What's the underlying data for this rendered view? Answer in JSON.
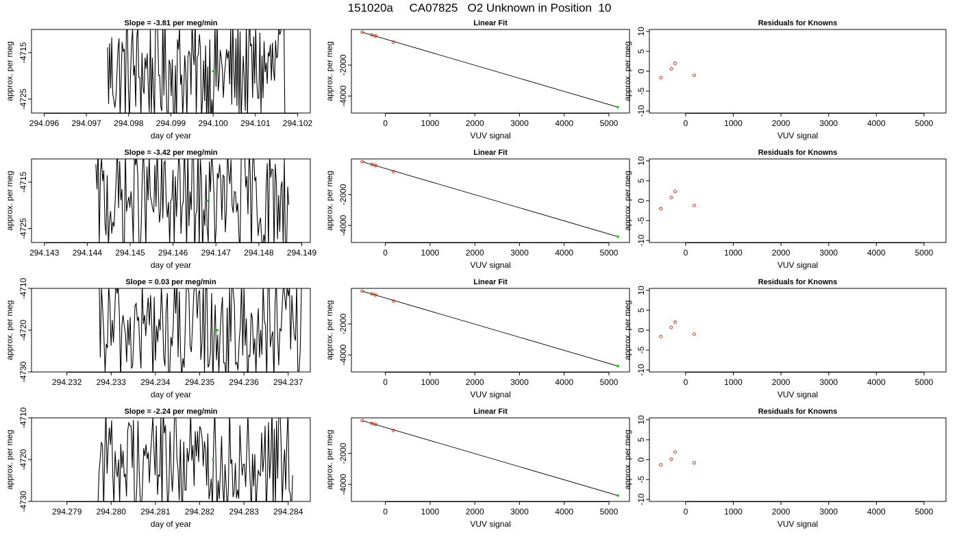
{
  "page_title": "151020a     CA07825   O2 Unknown in Position  10",
  "chart_data": [
    {
      "type": "line",
      "panel": "timeseries",
      "row": 0,
      "title": "Slope =  -3.81  per meg/min",
      "xlabel": "day of year",
      "ylabel": "approx. per meg",
      "xlim": [
        294.0957,
        294.1023
      ],
      "ylim": [
        -4728,
        -4710
      ],
      "xticks": [
        "294.096",
        "294.097",
        "294.098",
        "294.099",
        "294.100",
        "294.101",
        "294.102"
      ],
      "yticks": [
        "-4715",
        "-4725"
      ],
      "trace_start": 294.0975,
      "trace_end": 294.1017,
      "highlight_point": {
        "x": 294.1,
        "y": -4719
      }
    },
    {
      "type": "scatter",
      "panel": "fit",
      "row": 0,
      "title": "Linear Fit",
      "xlabel": "VUV signal",
      "ylabel": "approx. per meg",
      "xlim": [
        -760,
        5460
      ],
      "ylim": [
        -5100,
        300
      ],
      "xticks": [
        "0",
        "1000",
        "2000",
        "3000",
        "4000",
        "5000"
      ],
      "yticks": [
        "-2000",
        "-4000"
      ],
      "known_points": [
        {
          "x": -520,
          "y": 120
        },
        {
          "x": -300,
          "y": -60
        },
        {
          "x": -220,
          "y": -120
        },
        {
          "x": 180,
          "y": -520
        }
      ],
      "unknown_point": {
        "x": 5200,
        "y": -4720
      },
      "fit_line": [
        {
          "x": -520,
          "y": 120
        },
        {
          "x": 5200,
          "y": -4720
        }
      ]
    },
    {
      "type": "scatter",
      "panel": "residuals",
      "row": 0,
      "title": "Residuals for Knowns",
      "xlabel": "VUV signal",
      "ylabel": "approx. per meg",
      "xlim": [
        -760,
        5460
      ],
      "ylim": [
        -10.5,
        10.5
      ],
      "xticks": [
        "0",
        "1000",
        "2000",
        "3000",
        "4000",
        "5000"
      ],
      "yticks": [
        "-10",
        "-5",
        "0",
        "5",
        "10"
      ],
      "points": [
        {
          "x": -520,
          "y": -1.6
        },
        {
          "x": -300,
          "y": 0.6
        },
        {
          "x": -220,
          "y": 2.0
        },
        {
          "x": 180,
          "y": -1.0
        }
      ]
    },
    {
      "type": "line",
      "panel": "timeseries",
      "row": 1,
      "title": "Slope =  -3.42  per meg/min",
      "xlabel": "day of year",
      "ylabel": "approx. per meg",
      "xlim": [
        294.1427,
        294.1492
      ],
      "ylim": [
        -4728,
        -4710
      ],
      "xticks": [
        "294.143",
        "294.144",
        "294.145",
        "294.146",
        "294.147",
        "294.148",
        "294.149"
      ],
      "yticks": [
        "-4715",
        "-4725"
      ],
      "trace_start": 294.1442,
      "trace_end": 294.1487,
      "highlight_point": {
        "x": 294.1468,
        "y": -4719
      }
    },
    {
      "type": "scatter",
      "panel": "fit",
      "row": 1,
      "title": "Linear Fit",
      "xlabel": "VUV signal",
      "ylabel": "approx. per meg",
      "xlim": [
        -760,
        5460
      ],
      "ylim": [
        -5100,
        300
      ],
      "xticks": [
        "0",
        "1000",
        "2000",
        "3000",
        "4000",
        "5000"
      ],
      "yticks": [
        "-2000",
        "-4000"
      ],
      "known_points": [
        {
          "x": -520,
          "y": 120
        },
        {
          "x": -300,
          "y": -60
        },
        {
          "x": -220,
          "y": -120
        },
        {
          "x": 180,
          "y": -520
        }
      ],
      "unknown_point": {
        "x": 5200,
        "y": -4720
      },
      "fit_line": [
        {
          "x": -520,
          "y": 120
        },
        {
          "x": 5200,
          "y": -4720
        }
      ]
    },
    {
      "type": "scatter",
      "panel": "residuals",
      "row": 1,
      "title": "Residuals for Knowns",
      "xlabel": "VUV signal",
      "ylabel": "approx. per meg",
      "xlim": [
        -760,
        5460
      ],
      "ylim": [
        -10.5,
        10.5
      ],
      "xticks": [
        "0",
        "1000",
        "2000",
        "3000",
        "4000",
        "5000"
      ],
      "yticks": [
        "-10",
        "-5",
        "0",
        "5",
        "10"
      ],
      "points": [
        {
          "x": -520,
          "y": -2.0
        },
        {
          "x": -300,
          "y": 0.8
        },
        {
          "x": -220,
          "y": 2.3
        },
        {
          "x": 180,
          "y": -1.2
        }
      ]
    },
    {
      "type": "line",
      "panel": "timeseries",
      "row": 2,
      "title": "Slope =  0.03  per meg/min",
      "xlabel": "day of year",
      "ylabel": "approx. per meg",
      "xlim": [
        294.2312,
        294.2375
      ],
      "ylim": [
        -4730,
        -4710
      ],
      "xticks": [
        "294.232",
        "294.233",
        "294.234",
        "294.235",
        "294.236",
        "294.237"
      ],
      "yticks": [
        "-4710",
        "-4720",
        "-4730"
      ],
      "trace_start": 294.2327,
      "trace_end": 294.2373,
      "highlight_point": {
        "x": 294.2354,
        "y": -4720
      }
    },
    {
      "type": "scatter",
      "panel": "fit",
      "row": 2,
      "title": "Linear Fit",
      "xlabel": "VUV signal",
      "ylabel": "approx. per meg",
      "xlim": [
        -760,
        5460
      ],
      "ylim": [
        -5100,
        300
      ],
      "xticks": [
        "0",
        "1000",
        "2000",
        "3000",
        "4000",
        "5000"
      ],
      "yticks": [
        "-2000",
        "-4000"
      ],
      "known_points": [
        {
          "x": -520,
          "y": 120
        },
        {
          "x": -300,
          "y": -60
        },
        {
          "x": -220,
          "y": -120
        },
        {
          "x": 180,
          "y": -520
        }
      ],
      "unknown_point": {
        "x": 5200,
        "y": -4720
      },
      "fit_line": [
        {
          "x": -520,
          "y": 120
        },
        {
          "x": 5200,
          "y": -4720
        }
      ]
    },
    {
      "type": "scatter",
      "panel": "residuals",
      "row": 2,
      "title": "Residuals for Knowns",
      "xlabel": "VUV signal",
      "ylabel": "approx. per meg",
      "xlim": [
        -760,
        5460
      ],
      "ylim": [
        -10.5,
        10.5
      ],
      "xticks": [
        "0",
        "1000",
        "2000",
        "3000",
        "4000",
        "5000"
      ],
      "yticks": [
        "-10",
        "-5",
        "0",
        "5",
        "10"
      ],
      "points": [
        {
          "x": -520,
          "y": -1.6
        },
        {
          "x": -300,
          "y": 0.7
        },
        {
          "x": -220,
          "y": 2.0
        },
        {
          "x": 180,
          "y": -1.0
        }
      ]
    },
    {
      "type": "line",
      "panel": "timeseries",
      "row": 3,
      "title": "Slope =  -2.24  per meg/min",
      "xlabel": "day of year",
      "ylabel": "approx. per meg",
      "xlim": [
        294.2782,
        294.2845
      ],
      "ylim": [
        -4730,
        -4710
      ],
      "xticks": [
        "294.279",
        "294.280",
        "294.281",
        "294.282",
        "294.283",
        "294.284"
      ],
      "yticks": [
        "-4710",
        "-4720",
        "-4730"
      ],
      "trace_start": 294.2797,
      "trace_end": 294.2841,
      "highlight_point": {
        "x": 294.2823,
        "y": -4720
      }
    },
    {
      "type": "scatter",
      "panel": "fit",
      "row": 3,
      "title": "Linear Fit",
      "xlabel": "VUV signal",
      "ylabel": "approx. per meg",
      "xlim": [
        -760,
        5460
      ],
      "ylim": [
        -5100,
        300
      ],
      "xticks": [
        "0",
        "1000",
        "2000",
        "3000",
        "4000",
        "5000"
      ],
      "yticks": [
        "-2000",
        "-4000"
      ],
      "known_points": [
        {
          "x": -520,
          "y": 120
        },
        {
          "x": -300,
          "y": -60
        },
        {
          "x": -220,
          "y": -120
        },
        {
          "x": 180,
          "y": -520
        }
      ],
      "unknown_point": {
        "x": 5200,
        "y": -4720
      },
      "fit_line": [
        {
          "x": -520,
          "y": 120
        },
        {
          "x": 5200,
          "y": -4720
        }
      ]
    },
    {
      "type": "scatter",
      "panel": "residuals",
      "row": 3,
      "title": "Residuals for Knowns",
      "xlabel": "VUV signal",
      "ylabel": "approx. per meg",
      "xlim": [
        -760,
        5460
      ],
      "ylim": [
        -10.5,
        10.5
      ],
      "xticks": [
        "0",
        "1000",
        "2000",
        "3000",
        "4000",
        "5000"
      ],
      "yticks": [
        "-10",
        "-5",
        "0",
        "5",
        "10"
      ],
      "points": [
        {
          "x": -520,
          "y": -1.3
        },
        {
          "x": -300,
          "y": 0.1
        },
        {
          "x": -220,
          "y": 1.9
        },
        {
          "x": 180,
          "y": -0.8
        }
      ]
    }
  ],
  "colors": {
    "trace": "#000000",
    "known_point": "#cc2200",
    "unknown_point": "#00cc00",
    "fit_line": "#000000",
    "frame": "#000000"
  }
}
